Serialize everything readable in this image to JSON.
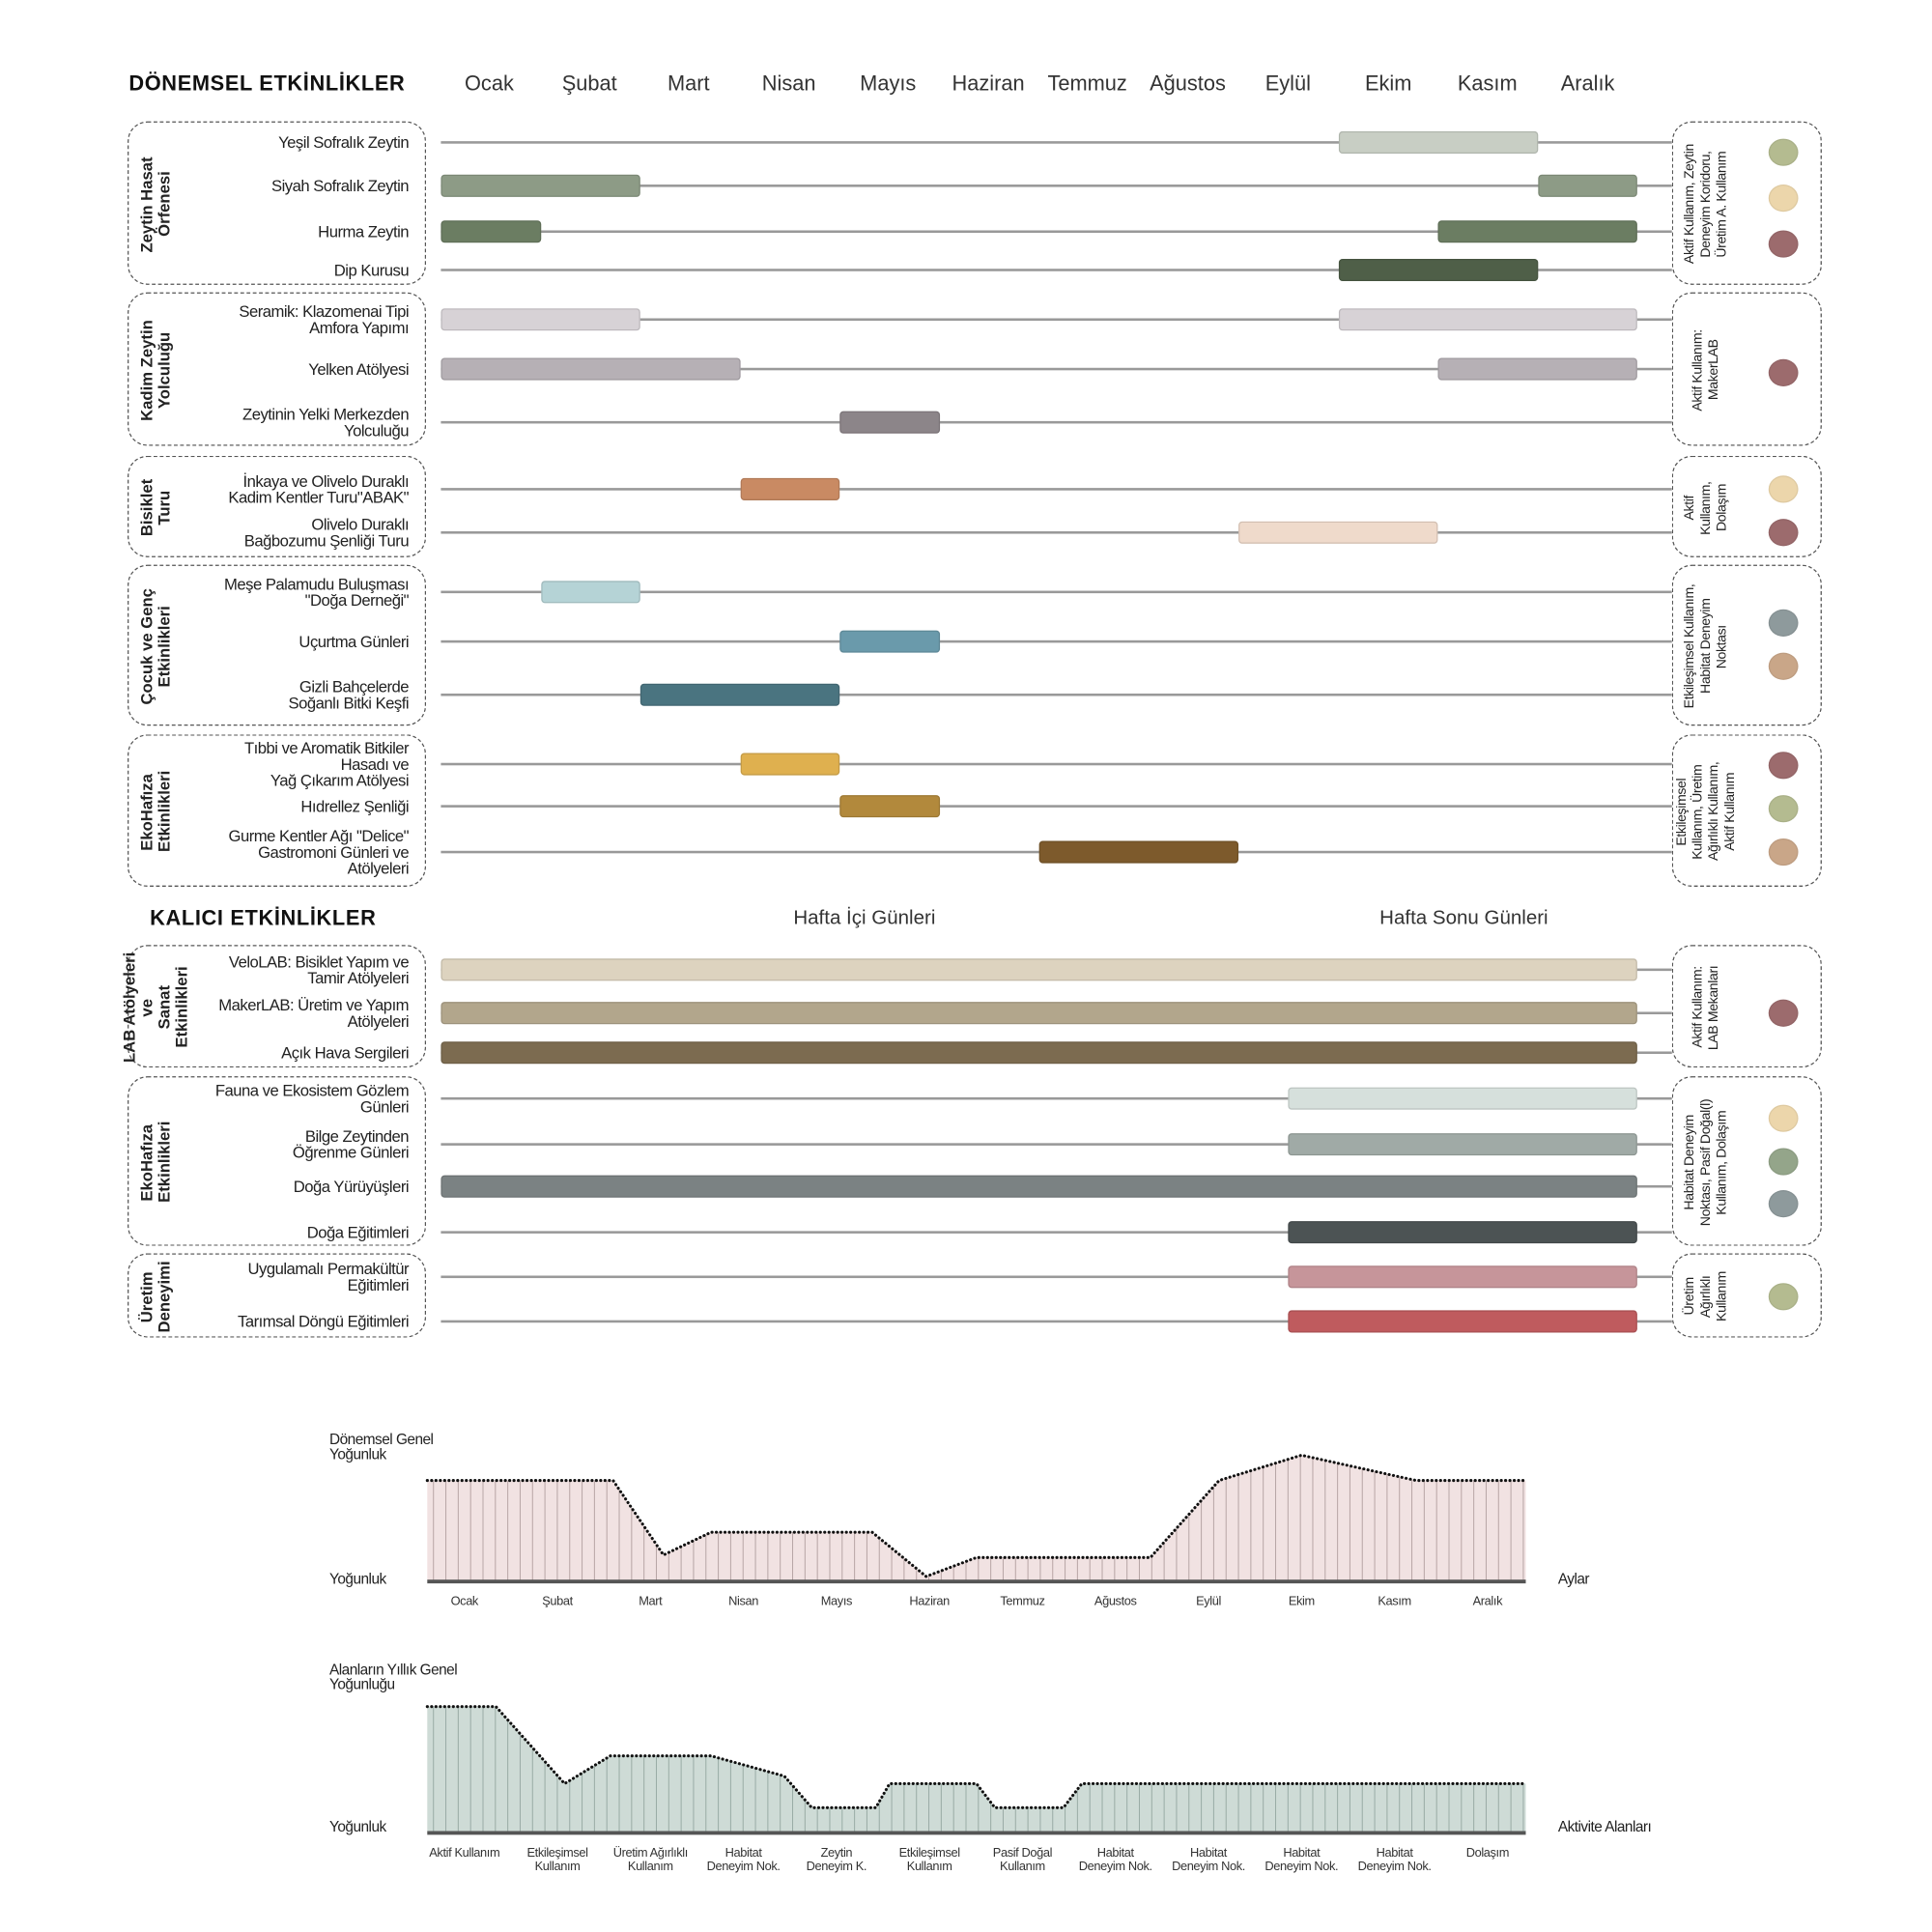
{
  "periodic": {
    "title": "DÖNEMSEL ETKİNLİKLER",
    "months": [
      "Ocak",
      "Şubat",
      "Mart",
      "Nisan",
      "Mayıs",
      "Haziran",
      "Temmuz",
      "Ağustos",
      "Eylül",
      "Ekim",
      "Kasım",
      "Aralık"
    ],
    "groups": [
      {
        "label": "Zeytin Hasat\nÖrfenesi",
        "usage": "Aktif Kullanım, Zeytin\nDeneyim Koridoru,\nÜretim A. Kullanım",
        "dots": [
          "#b4bb90",
          "#ecd6ab",
          "#9c6b6d"
        ],
        "rows": [
          {
            "label": "Yeşil Sofralık Zeytin",
            "bars": [
              {
                "start": 9,
                "end": 11,
                "color": "#c8cec4"
              }
            ]
          },
          {
            "label": "Siyah Sofralık Zeytin",
            "bars": [
              {
                "start": 0,
                "end": 2,
                "color": "#8d9b86"
              },
              {
                "start": 11,
                "end": 12,
                "color": "#8d9b86"
              }
            ]
          },
          {
            "label": "Hurma Zeytin",
            "bars": [
              {
                "start": 0,
                "end": 1,
                "color": "#6b7d62"
              },
              {
                "start": 10,
                "end": 12,
                "color": "#6b7d62"
              }
            ]
          },
          {
            "label": "Dip Kurusu",
            "bars": [
              {
                "start": 9,
                "end": 11,
                "color": "#4f5f48"
              }
            ]
          }
        ]
      },
      {
        "label": "Kadim Zeytin\nYolculuğu",
        "usage": "Aktif Kullanım:\nMakerLAB",
        "dots": [
          "#9c6b6d"
        ],
        "rows": [
          {
            "label": "Seramik: Klazomenai Tipi\nAmfora Yapımı",
            "bars": [
              {
                "start": 0,
                "end": 2,
                "color": "#d7d2d6"
              },
              {
                "start": 9,
                "end": 12,
                "color": "#d7d2d6"
              }
            ]
          },
          {
            "label": "Yelken Atölyesi",
            "bars": [
              {
                "start": 0,
                "end": 3,
                "color": "#b6b0b5"
              },
              {
                "start": 10,
                "end": 12,
                "color": "#b6b0b5"
              }
            ]
          },
          {
            "label": "Zeytinin Yelki Merkezden\nYolculuğu",
            "bars": [
              {
                "start": 4,
                "end": 5,
                "color": "#8c8589"
              }
            ]
          }
        ]
      },
      {
        "label": "Bisiklet\nTuru",
        "usage": "Aktif\nKullanım,\nDolaşım",
        "dots": [
          "#ecd6ab",
          "#9c6b6d"
        ],
        "rows": [
          {
            "label": "İnkaya ve Olivelo Duraklı\nKadim Kentler Turu\"ABAK\"",
            "bars": [
              {
                "start": 3,
                "end": 4,
                "color": "#c98a63"
              }
            ]
          },
          {
            "label": "Olivelo Duraklı\nBağbozumu Şenliği Turu",
            "bars": [
              {
                "start": 8,
                "end": 10,
                "color": "#efdacb"
              }
            ]
          }
        ]
      },
      {
        "label": "Çocuk ve Genç\nEtkinlikleri",
        "usage": "Etkileşimsel Kullanım,\nHabitat Deneyim\nNoktası",
        "dots": [
          "#8e9a9c",
          "#c9a688"
        ],
        "rows": [
          {
            "label": "Meşe Palamudu Buluşması\n\"Doğa Derneği\"",
            "bars": [
              {
                "start": 1,
                "end": 2,
                "color": "#b5d3d6"
              }
            ]
          },
          {
            "label": "Uçurtma Günleri",
            "bars": [
              {
                "start": 4,
                "end": 5,
                "color": "#6a9aab"
              }
            ]
          },
          {
            "label": "Gizli Bahçelerde\nSoğanlı Bitki Keşfi",
            "bars": [
              {
                "start": 2,
                "end": 4,
                "color": "#4a7480"
              }
            ]
          }
        ]
      },
      {
        "label": "EkoHafıza\nEtkinlikleri",
        "usage": "Etkileşimsel\nKullanım, Üretim\nAğırlıklı Kullanım,\nAktif Kullanım",
        "dots": [
          "#9c6b6d",
          "#b4bb90",
          "#c9a688"
        ],
        "rows": [
          {
            "label": "Tıbbi ve Aromatik Bitkiler\nHasadı ve\nYağ Çıkarım Atölyesi",
            "bars": [
              {
                "start": 3,
                "end": 4,
                "color": "#dfb04f"
              }
            ]
          },
          {
            "label": "Hıdrellez Şenliği",
            "bars": [
              {
                "start": 4,
                "end": 5,
                "color": "#b2893c"
              }
            ]
          },
          {
            "label": "Gurme Kentler Ağı \"Delice\"\nGastromoni Günleri ve\nAtölyeleri",
            "bars": [
              {
                "start": 6,
                "end": 8,
                "color": "#7d5a2c"
              }
            ]
          }
        ]
      }
    ]
  },
  "permanent": {
    "title": "KALICI ETKİNLİKLER",
    "weekdays_label": "Hafta İçi Günleri",
    "weekend_label": "Hafta Sonu Günleri",
    "groups": [
      {
        "label": "LAB Atölyeleri ve\nSanat Etkinlikleri",
        "usage": "Aktif Kullanım:\nLAB Mekanları",
        "dots": [
          "#9c6b6d"
        ],
        "rows": [
          {
            "label": "VeloLAB: Bisiklet Yapım ve\nTamir Atölyeleri",
            "period": "all",
            "color": "#ddd3bf"
          },
          {
            "label": "MakerLAB: Üretim ve Yapım\nAtölyeleri",
            "period": "all",
            "color": "#b2a68c"
          },
          {
            "label": "Açık Hava Sergileri",
            "period": "all",
            "color": "#7c6b50"
          }
        ]
      },
      {
        "label": "EkoHafıza\nEtkinlikleri",
        "usage": "Habitat Deneyim\nNoktası, Pasif Doğal(l)\nKullanım, Dolaşım",
        "dots": [
          "#ecd6ab",
          "#94a58a",
          "#8e9a9c"
        ],
        "rows": [
          {
            "label": "Fauna ve Ekosistem Gözlem\nGünleri",
            "period": "weekend",
            "color": "#d6e0dc"
          },
          {
            "label": "Bilge Zeytinden\nÖğrenme Günleri",
            "period": "weekend",
            "color": "#a0aaa6"
          },
          {
            "label": "Doğa Yürüyüşleri",
            "period": "all",
            "color": "#7b8283"
          },
          {
            "label": "Doğa Eğitimleri",
            "period": "weekend",
            "color": "#4c5354"
          }
        ]
      },
      {
        "label": "Üretim\nDeneyimi",
        "usage": "Üretim\nAğırlıklı\nKullanım",
        "dots": [
          "#b4bb90"
        ],
        "rows": [
          {
            "label": "Uygulamalı Permakültür\nEğitimleri",
            "period": "weekend",
            "color": "#c6959a"
          },
          {
            "label": "Tarımsal Döngü Eğitimleri",
            "period": "weekend",
            "color": "#bf5b5e"
          }
        ]
      }
    ]
  },
  "chart_data": [
    {
      "type": "area",
      "title": "Dönemsel Genel\nYoğunluk",
      "ylabel": "Yoğunluk",
      "xlabel": "Aylar",
      "categories": [
        "Ocak",
        "Şubat",
        "Mart",
        "Nisan",
        "Mayıs",
        "Haziran",
        "Temmuz",
        "Ağustos",
        "Eylül",
        "Ekim",
        "Kasım",
        "Aralık"
      ],
      "ylim": [
        0,
        100
      ],
      "fill": "#f1e2e2",
      "stripe": "#b8a6a6",
      "points": [
        [
          0,
          80
        ],
        [
          2.03,
          80
        ],
        [
          2.58,
          21
        ],
        [
          3.1,
          39
        ],
        [
          4.86,
          39
        ],
        [
          5.45,
          4
        ],
        [
          6.0,
          19
        ],
        [
          7.9,
          19
        ],
        [
          8.65,
          80
        ],
        [
          9.55,
          100
        ],
        [
          10.8,
          80
        ],
        [
          12,
          80
        ]
      ]
    },
    {
      "type": "area",
      "title": "Alanların Yıllık Genel\nYoğunluğu",
      "ylabel": "Yoğunluk",
      "xlabel": "Aktivite Alanları",
      "categories": [
        "Aktif Kullanım",
        "Etkileşimsel\nKullanım",
        "Üretim Ağırlıklı\nKullanım",
        "Habitat\nDeneyim Nok.",
        "Zeytin\nDeneyim K.",
        "Etkileşimsel\nKullanım",
        "Pasif Doğal\nKullanım",
        "Habitat\nDeneyim Nok.",
        "Habitat\nDeneyim Nok.",
        "Habitat\nDeneyim Nok.",
        "Habitat\nDeneyim Nok.",
        "Dolaşım"
      ],
      "ylim": [
        0,
        100
      ],
      "fill": "#cedbd6",
      "stripe": "#9aaca6",
      "points": [
        [
          0,
          100
        ],
        [
          0.75,
          100
        ],
        [
          1.5,
          39
        ],
        [
          2.0,
          61
        ],
        [
          3.1,
          61
        ],
        [
          3.9,
          45
        ],
        [
          4.2,
          20
        ],
        [
          4.9,
          20
        ],
        [
          5.05,
          39
        ],
        [
          6.0,
          39
        ],
        [
          6.2,
          20
        ],
        [
          6.95,
          20
        ],
        [
          7.15,
          39
        ],
        [
          12,
          39
        ]
      ]
    }
  ]
}
